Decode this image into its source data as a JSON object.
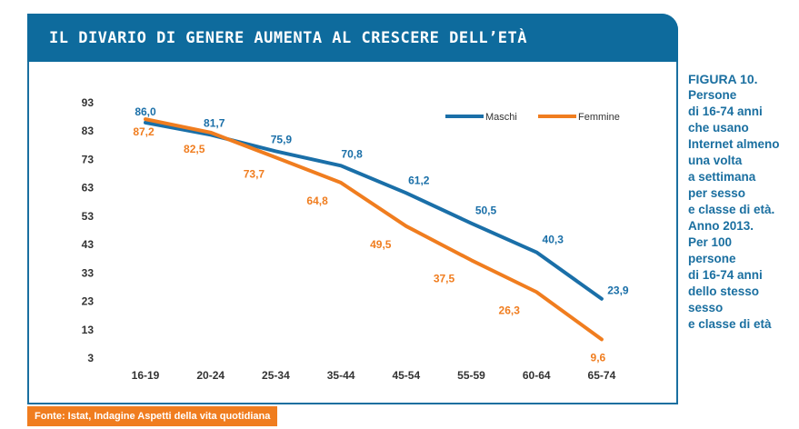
{
  "header": {
    "title": "IL DIVARIO DI GENERE AUMENTA AL CRESCERE DELL’ETÀ"
  },
  "caption": {
    "figure": "FIGURA 10.",
    "lines": [
      "Persone",
      "di 16-74 anni",
      "che usano",
      "Internet almeno",
      "una volta",
      "a settimana",
      "per sesso",
      "e classe di età.",
      "Anno 2013.",
      "Per 100",
      "persone",
      "di 16-74 anni",
      "dello stesso sesso",
      "e classe di età"
    ]
  },
  "source": "Fonte: Istat, Indagine Aspetti della vita quotidiana",
  "colors": {
    "maschi": "#1a6fa8",
    "femmine": "#f07d1f",
    "header": "#0e6b9d"
  },
  "chart_data": {
    "type": "line",
    "categories": [
      "16-19",
      "20-24",
      "25-34",
      "35-44",
      "45-54",
      "55-59",
      "60-64",
      "65-74"
    ],
    "series": [
      {
        "name": "Maschi",
        "values": [
          86.0,
          81.7,
          75.9,
          70.8,
          61.2,
          50.5,
          40.3,
          23.9
        ],
        "labels": [
          "86,0",
          "81,7",
          "75,9",
          "70,8",
          "61,2",
          "50,5",
          "40,3",
          "23,9"
        ]
      },
      {
        "name": "Femmine",
        "values": [
          87.2,
          82.5,
          73.7,
          64.8,
          49.5,
          37.5,
          26.3,
          9.6
        ],
        "labels": [
          "87,2",
          "82,5",
          "73,7",
          "64,8",
          "49,5",
          "37,5",
          "26,3",
          "9,6"
        ]
      }
    ],
    "yticks": [
      93,
      83,
      73,
      63,
      53,
      43,
      33,
      23,
      13,
      3
    ],
    "ylim": [
      3,
      93
    ],
    "grid": false,
    "legend": "top-right"
  }
}
